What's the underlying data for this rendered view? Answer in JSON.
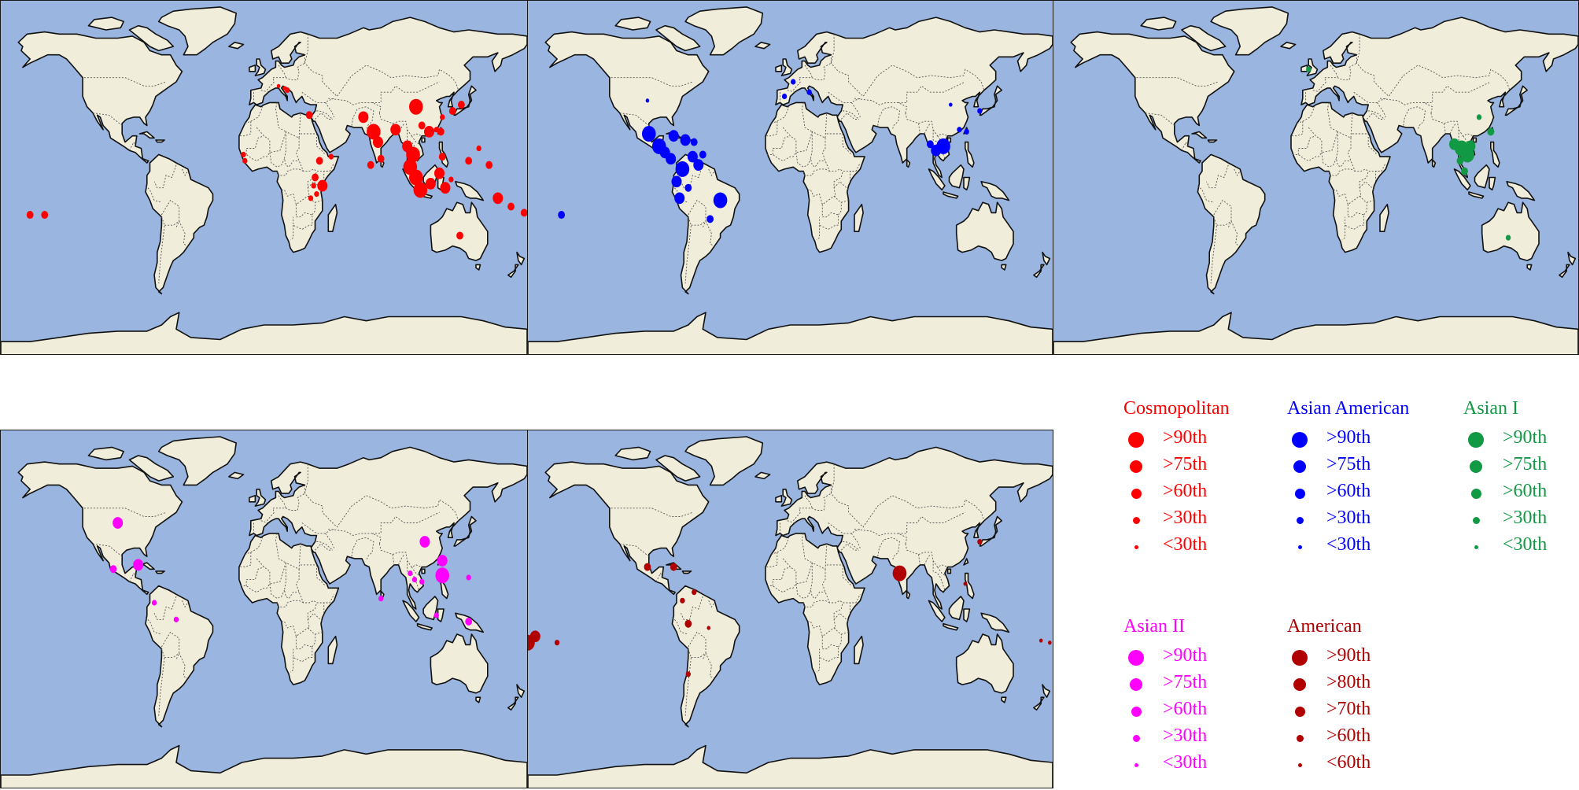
{
  "maps": [
    {
      "id": "cosmopolitan",
      "color": "#ff0000",
      "points": [
        {
          "lon": 10,
          "lat": 45,
          "size": 1
        },
        {
          "lon": 14,
          "lat": 44,
          "size": 1
        },
        {
          "lon": 16,
          "lat": 43,
          "size": 2
        },
        {
          "lon": 31,
          "lat": 31,
          "size": 3
        },
        {
          "lon": -14,
          "lat": 12,
          "size": 2
        },
        {
          "lon": -13,
          "lat": 9,
          "size": 2
        },
        {
          "lon": 38,
          "lat": 9,
          "size": 3
        },
        {
          "lon": 35,
          "lat": 1,
          "size": 3
        },
        {
          "lon": 40,
          "lat": -3,
          "size": 4
        },
        {
          "lon": 36,
          "lat": -7,
          "size": 2
        },
        {
          "lon": 32,
          "lat": -9,
          "size": 2
        },
        {
          "lon": 34,
          "lat": -3,
          "size": 2
        },
        {
          "lon": 46,
          "lat": 11,
          "size": 2
        },
        {
          "lon": 68,
          "lat": 30,
          "size": 4
        },
        {
          "lon": 75,
          "lat": 23,
          "size": 5
        },
        {
          "lon": 78,
          "lat": 18,
          "size": 4
        },
        {
          "lon": 80,
          "lat": 10,
          "size": 3
        },
        {
          "lon": 73,
          "lat": 7,
          "size": 3
        },
        {
          "lon": 90,
          "lat": 24,
          "size": 4
        },
        {
          "lon": 104,
          "lat": 35,
          "size": 5
        },
        {
          "lon": 108,
          "lat": 26,
          "size": 3
        },
        {
          "lon": 113,
          "lat": 23,
          "size": 4
        },
        {
          "lon": 118,
          "lat": 24,
          "size": 2
        },
        {
          "lon": 122,
          "lat": 30,
          "size": 2
        },
        {
          "lon": 121,
          "lat": 23,
          "size": 3
        },
        {
          "lon": 135,
          "lat": 36,
          "size": 3
        },
        {
          "lon": 129,
          "lat": 33,
          "size": 3
        },
        {
          "lon": 98,
          "lat": 16,
          "size": 4
        },
        {
          "lon": 102,
          "lat": 12,
          "size": 5
        },
        {
          "lon": 100,
          "lat": 6,
          "size": 5
        },
        {
          "lon": 104,
          "lat": 1,
          "size": 5
        },
        {
          "lon": 107,
          "lat": -5,
          "size": 5
        },
        {
          "lon": 114,
          "lat": -2,
          "size": 4
        },
        {
          "lon": 120,
          "lat": 3,
          "size": 4
        },
        {
          "lon": 122,
          "lat": 11,
          "size": 3
        },
        {
          "lon": 124,
          "lat": -4,
          "size": 4
        },
        {
          "lon": 128,
          "lat": 0,
          "size": 2
        },
        {
          "lon": 140,
          "lat": 9,
          "size": 3
        },
        {
          "lon": 154,
          "lat": 7,
          "size": 3
        },
        {
          "lon": 147,
          "lat": 15,
          "size": 2
        },
        {
          "lon": 134,
          "lat": -27,
          "size": 3
        },
        {
          "lon": 160,
          "lat": -9,
          "size": 4
        },
        {
          "lon": 169,
          "lat": -13,
          "size": 3
        },
        {
          "lon": 178,
          "lat": -16,
          "size": 3
        },
        {
          "lon": -160,
          "lat": -17,
          "size": 3
        },
        {
          "lon": -150,
          "lat": -17,
          "size": 3
        }
      ]
    },
    {
      "id": "asian-american",
      "color": "#0000ff",
      "points": [
        {
          "lon": -98,
          "lat": 38,
          "size": 1
        },
        {
          "lon": -157,
          "lat": -17,
          "size": 3
        },
        {
          "lon": -97,
          "lat": 22,
          "size": 5
        },
        {
          "lon": -90,
          "lat": 16,
          "size": 5
        },
        {
          "lon": -86,
          "lat": 13,
          "size": 4
        },
        {
          "lon": -82,
          "lat": 10,
          "size": 4
        },
        {
          "lon": -80,
          "lat": 21,
          "size": 4
        },
        {
          "lon": -72,
          "lat": 19,
          "size": 4
        },
        {
          "lon": -66,
          "lat": 18,
          "size": 3
        },
        {
          "lon": -67,
          "lat": 11,
          "size": 4
        },
        {
          "lon": -74,
          "lat": 5,
          "size": 5
        },
        {
          "lon": -63,
          "lat": 7,
          "size": 4
        },
        {
          "lon": -60,
          "lat": 12,
          "size": 3
        },
        {
          "lon": -78,
          "lat": -1,
          "size": 4
        },
        {
          "lon": -76,
          "lat": -9,
          "size": 4
        },
        {
          "lon": -70,
          "lat": -4,
          "size": 3
        },
        {
          "lon": -48,
          "lat": -10,
          "size": 5
        },
        {
          "lon": -55,
          "lat": -19,
          "size": 3
        },
        {
          "lon": -4,
          "lat": 40,
          "size": 2
        },
        {
          "lon": 2,
          "lat": 47,
          "size": 2
        },
        {
          "lon": 13,
          "lat": 42,
          "size": 2
        },
        {
          "lon": 110,
          "lat": 36,
          "size": 1
        },
        {
          "lon": 116,
          "lat": 24,
          "size": 2
        },
        {
          "lon": 105,
          "lat": 16,
          "size": 5
        },
        {
          "lon": 100,
          "lat": 14,
          "size": 4
        },
        {
          "lon": 96,
          "lat": 17,
          "size": 3
        },
        {
          "lon": 121,
          "lat": 23,
          "size": 2
        },
        {
          "lon": 130,
          "lat": 33,
          "size": 2
        }
      ]
    },
    {
      "id": "asian-i",
      "color": "#119944",
      "points": [
        {
          "lon": -5,
          "lat": 53,
          "size": 2
        },
        {
          "lon": 112,
          "lat": 30,
          "size": 2
        },
        {
          "lon": 120,
          "lat": 23,
          "size": 3
        },
        {
          "lon": 95,
          "lat": 17,
          "size": 4
        },
        {
          "lon": 100,
          "lat": 15,
          "size": 5
        },
        {
          "lon": 104,
          "lat": 12,
          "size": 5
        },
        {
          "lon": 106,
          "lat": 16,
          "size": 4
        },
        {
          "lon": 99,
          "lat": 9,
          "size": 3
        },
        {
          "lon": 102,
          "lat": 4,
          "size": 3
        },
        {
          "lon": 132,
          "lat": -28,
          "size": 2
        }
      ]
    },
    {
      "id": "asian-ii",
      "color": "#ff00ff",
      "points": [
        {
          "lon": -100,
          "lat": 42,
          "size": 4
        },
        {
          "lon": -103,
          "lat": 20,
          "size": 3
        },
        {
          "lon": -86,
          "lat": 22,
          "size": 4
        },
        {
          "lon": -75,
          "lat": 4,
          "size": 2
        },
        {
          "lon": -60,
          "lat": -4,
          "size": 2
        },
        {
          "lon": 110,
          "lat": 33,
          "size": 4
        },
        {
          "lon": 122,
          "lat": 24,
          "size": 4
        },
        {
          "lon": 122,
          "lat": 17,
          "size": 5
        },
        {
          "lon": 103,
          "lat": 15,
          "size": 2
        },
        {
          "lon": 108,
          "lat": 14,
          "size": 2
        },
        {
          "lon": 80,
          "lat": 6,
          "size": 2
        },
        {
          "lon": 140,
          "lat": 16,
          "size": 2
        },
        {
          "lon": 140,
          "lat": -5,
          "size": 3
        },
        {
          "lon": 118,
          "lat": -2,
          "size": 2
        },
        {
          "lon": 100,
          "lat": 18,
          "size": 2
        }
      ]
    },
    {
      "id": "american",
      "color": "#b00000",
      "points": [
        {
          "lon": -98,
          "lat": 21,
          "size": 3
        },
        {
          "lon": -80,
          "lat": 21,
          "size": 3
        },
        {
          "lon": -66,
          "lat": 9,
          "size": 2
        },
        {
          "lon": -74,
          "lat": 5,
          "size": 2
        },
        {
          "lon": -70,
          "lat": -6,
          "size": 3
        },
        {
          "lon": -56,
          "lat": -8,
          "size": 1
        },
        {
          "lon": -70,
          "lat": -30,
          "size": 2
        },
        {
          "lon": 75,
          "lat": 18,
          "size": 5
        },
        {
          "lon": 130,
          "lat": 33,
          "size": 2
        },
        {
          "lon": 120,
          "lat": 13,
          "size": 1
        },
        {
          "lon": -180,
          "lat": -15,
          "size": 5
        },
        {
          "lon": -175,
          "lat": -12,
          "size": 4
        },
        {
          "lon": -160,
          "lat": -15,
          "size": 2
        },
        {
          "lon": 178,
          "lat": -15,
          "size": 1
        },
        {
          "lon": 172,
          "lat": -14,
          "size": 1
        }
      ]
    }
  ],
  "legends": [
    {
      "title": "Cosmopolitan",
      "color": "#ff0000",
      "labels": [
        ">90th",
        ">75th",
        ">60th",
        ">30th",
        "<30th"
      ]
    },
    {
      "title": "Asian American",
      "color": "#0000ff",
      "labels": [
        ">90th",
        ">75th",
        ">60th",
        ">30th",
        "<30th"
      ]
    },
    {
      "title": "Asian  I",
      "color": "#119944",
      "labels": [
        ">90th",
        ">75th",
        ">60th",
        ">30th",
        "<30th"
      ]
    },
    {
      "title": "Asian  II",
      "color": "#ff00ff",
      "labels": [
        ">90th",
        ">75th",
        ">60th",
        ">30th",
        "<30th"
      ]
    },
    {
      "title": "American",
      "color": "#b00000",
      "labels": [
        ">90th",
        ">80th",
        ">70th",
        ">60th",
        "<60th"
      ]
    }
  ],
  "colors": {
    "ocean": "#9ab5df",
    "land": "#f0eddb",
    "coast": "#111111",
    "border": "#555555"
  }
}
